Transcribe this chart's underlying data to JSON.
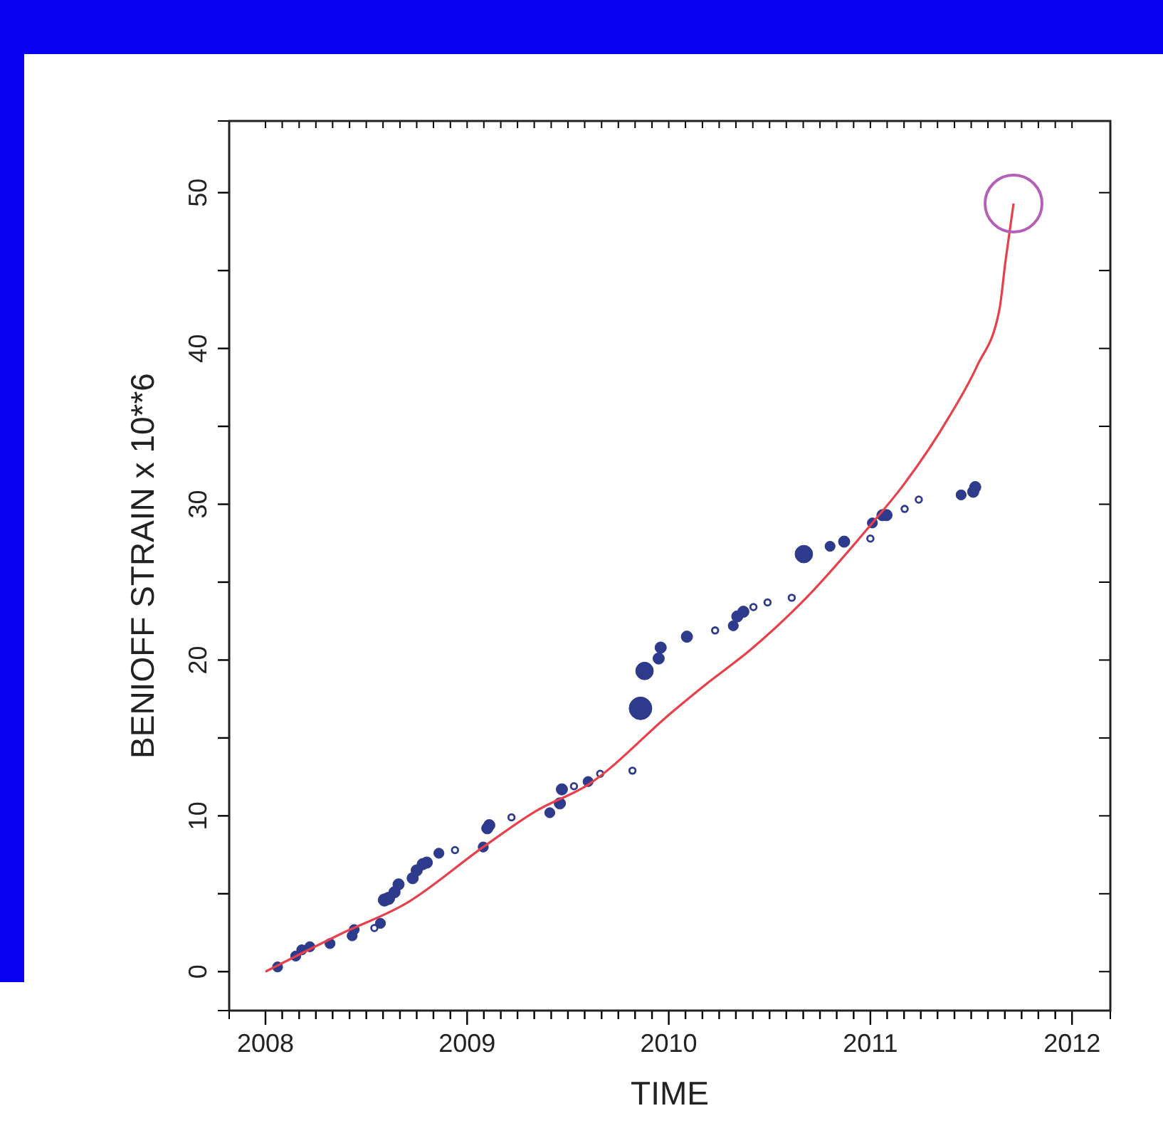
{
  "chart_data": {
    "type": "bubble",
    "xlabel": "TIME",
    "ylabel": "BENIOFF STRAIN x 10**6",
    "xlim": [
      2007.82,
      2012.19
    ],
    "ylim": [
      -2.5,
      54.6
    ],
    "xticks": [
      2008,
      {
        "value": 2008.083,
        "label": null
      },
      {
        "value": 2008.167,
        "label": null
      },
      {
        "value": 2008.25,
        "label": null
      },
      {
        "value": 2008.333,
        "label": null
      },
      {
        "value": 2008.417,
        "label": null
      },
      {
        "value": 2008.5,
        "label": null
      },
      {
        "value": 2008.583,
        "label": null
      },
      {
        "value": 2008.667,
        "label": null
      },
      {
        "value": 2008.75,
        "label": null
      },
      {
        "value": 2008.833,
        "label": null
      },
      {
        "value": 2008.917,
        "label": null
      },
      2009,
      {
        "value": 2009.083,
        "label": null
      },
      {
        "value": 2009.167,
        "label": null
      },
      {
        "value": 2009.25,
        "label": null
      },
      {
        "value": 2009.333,
        "label": null
      },
      {
        "value": 2009.417,
        "label": null
      },
      {
        "value": 2009.5,
        "label": null
      },
      {
        "value": 2009.583,
        "label": null
      },
      {
        "value": 2009.667,
        "label": null
      },
      {
        "value": 2009.75,
        "label": null
      },
      {
        "value": 2009.833,
        "label": null
      },
      {
        "value": 2009.917,
        "label": null
      },
      2010,
      {
        "value": 2010.083,
        "label": null
      },
      {
        "value": 2010.167,
        "label": null
      },
      {
        "value": 2010.25,
        "label": null
      },
      {
        "value": 2010.333,
        "label": null
      },
      {
        "value": 2010.417,
        "label": null
      },
      {
        "value": 2010.5,
        "label": null
      },
      {
        "value": 2010.583,
        "label": null
      },
      {
        "value": 2010.667,
        "label": null
      },
      {
        "value": 2010.75,
        "label": null
      },
      {
        "value": 2010.833,
        "label": null
      },
      {
        "value": 2010.917,
        "label": null
      },
      2011,
      {
        "value": 2011.083,
        "label": null
      },
      {
        "value": 2011.167,
        "label": null
      },
      {
        "value": 2011.25,
        "label": null
      },
      {
        "value": 2011.333,
        "label": null
      },
      {
        "value": 2011.417,
        "label": null
      },
      {
        "value": 2011.5,
        "label": null
      },
      {
        "value": 2011.583,
        "label": null
      },
      {
        "value": 2011.667,
        "label": null
      },
      {
        "value": 2011.75,
        "label": null
      },
      {
        "value": 2011.833,
        "label": null
      },
      {
        "value": 2011.917,
        "label": null
      },
      2012
    ],
    "yticks": [
      0,
      {
        "value": 5,
        "label": null
      },
      10,
      {
        "value": 15,
        "label": null
      },
      20,
      {
        "value": 25,
        "label": null
      },
      30,
      {
        "value": 35,
        "label": null
      },
      40,
      {
        "value": 45,
        "label": null
      },
      50
    ],
    "grid": false,
    "series": [
      {
        "color": "#2e3a8c",
        "x": [
          2008.06,
          2008.15,
          2008.18,
          2008.22,
          2008.32,
          2008.43,
          2008.44,
          2008.54,
          2008.57,
          2008.59,
          2008.61,
          2008.64,
          2008.66,
          2008.73,
          2008.75,
          2008.78,
          2008.8,
          2008.86,
          2008.94,
          2009.08,
          2009.1,
          2009.11,
          2009.22,
          2009.41,
          2009.46,
          2009.47,
          2009.53,
          2009.6,
          2009.66,
          2009.82,
          2009.86,
          2009.88,
          2009.95,
          2009.96,
          2010.09,
          2010.23,
          2010.32,
          2010.34,
          2010.37,
          2010.42,
          2010.49,
          2010.61,
          2010.67,
          2010.8,
          2010.87,
          2011.0,
          2011.01,
          2011.06,
          2011.08,
          2011.17,
          2011.24,
          2011.45,
          2011.51,
          2011.52
        ],
        "values": [
          0.3,
          1.0,
          1.4,
          1.6,
          1.8,
          2.3,
          2.7,
          2.8,
          3.1,
          4.6,
          4.7,
          5.1,
          5.6,
          6.0,
          6.5,
          6.9,
          7.0,
          7.6,
          7.8,
          8.0,
          9.2,
          9.4,
          9.9,
          10.2,
          10.8,
          11.7,
          11.9,
          12.2,
          12.7,
          12.9,
          16.9,
          19.3,
          20.1,
          20.8,
          21.5,
          21.9,
          22.2,
          22.8,
          23.1,
          23.4,
          23.7,
          24.0,
          26.8,
          27.3,
          27.6,
          27.8,
          28.8,
          29.3,
          29.3,
          29.7,
          30.3,
          30.6,
          30.8,
          31.1
        ],
        "sizes": [
          0.2,
          0.2,
          0.2,
          0.2,
          0.2,
          0.2,
          0.2,
          0.12,
          0.2,
          0.3,
          0.3,
          0.25,
          0.25,
          0.25,
          0.25,
          0.25,
          0.25,
          0.2,
          0.12,
          0.2,
          0.25,
          0.25,
          0.12,
          0.2,
          0.25,
          0.25,
          0.12,
          0.2,
          0.12,
          0.12,
          1,
          0.6,
          0.25,
          0.25,
          0.25,
          0.12,
          0.2,
          0.25,
          0.25,
          0.12,
          0.12,
          0.12,
          0.6,
          0.2,
          0.25,
          0.12,
          0.2,
          0.25,
          0.25,
          0.12,
          0.12,
          0.2,
          0.25,
          0.25
        ]
      },
      {
        "type": "line",
        "color": "#e8404a",
        "x": [
          2008.0,
          2008.37,
          2008.7,
          2009.08,
          2009.34,
          2009.6,
          2010.02,
          2010.19,
          2010.4,
          2010.66,
          2011.01,
          2011.15,
          2011.39,
          2011.53,
          2011.64,
          2011.67,
          2011.71
        ],
        "values": [
          0,
          2.4,
          4.4,
          8.0,
          10.3,
          12.0,
          16.7,
          18.5,
          20.6,
          23.7,
          28.8,
          31.0,
          35.6,
          38.9,
          42.5,
          45.6,
          49.3
        ]
      }
    ]
  }
}
